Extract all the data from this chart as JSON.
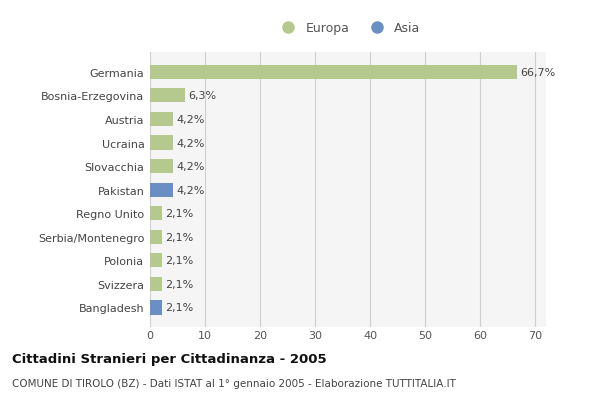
{
  "categories": [
    "Germania",
    "Bosnia-Erzegovina",
    "Austria",
    "Ucraina",
    "Slovacchia",
    "Pakistan",
    "Regno Unito",
    "Serbia/Montenegro",
    "Polonia",
    "Svizzera",
    "Bangladesh"
  ],
  "values": [
    66.7,
    6.3,
    4.2,
    4.2,
    4.2,
    4.2,
    2.1,
    2.1,
    2.1,
    2.1,
    2.1
  ],
  "labels": [
    "66,7%",
    "6,3%",
    "4,2%",
    "4,2%",
    "4,2%",
    "4,2%",
    "2,1%",
    "2,1%",
    "2,1%",
    "2,1%",
    "2,1%"
  ],
  "continents": [
    "Europa",
    "Europa",
    "Europa",
    "Europa",
    "Europa",
    "Asia",
    "Europa",
    "Europa",
    "Europa",
    "Europa",
    "Asia"
  ],
  "color_europa": "#b5c98e",
  "color_asia": "#6b8fc2",
  "background_color": "#ffffff",
  "plot_bg_color": "#f5f5f5",
  "grid_color": "#d0d0d0",
  "xlim": [
    0,
    72
  ],
  "xticks": [
    0,
    10,
    20,
    30,
    40,
    50,
    60,
    70
  ],
  "title": "Cittadini Stranieri per Cittadinanza - 2005",
  "subtitle": "COMUNE DI TIROLO (BZ) - Dati ISTAT al 1° gennaio 2005 - Elaborazione TUTTITALIA.IT",
  "legend_europa": "Europa",
  "legend_asia": "Asia"
}
